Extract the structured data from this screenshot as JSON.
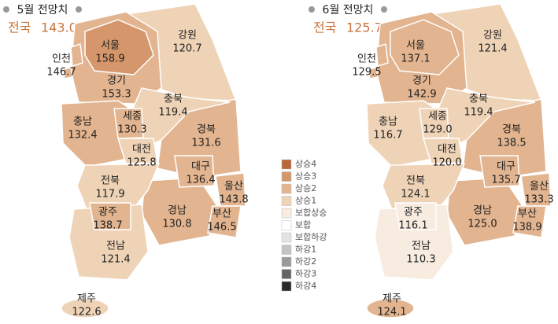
{
  "legend": [
    {
      "label": "상승4",
      "color": "#b8683a"
    },
    {
      "label": "상승3",
      "color": "#d4966a"
    },
    {
      "label": "상승2",
      "color": "#e2b48f"
    },
    {
      "label": "상승1",
      "color": "#efd3b7"
    },
    {
      "label": "보합상승",
      "color": "#f8ece0"
    },
    {
      "label": "보합",
      "color": "#ffffff"
    },
    {
      "label": "보합하강",
      "color": "#e3e3e3"
    },
    {
      "label": "하강1",
      "color": "#c4c4c4"
    },
    {
      "label": "하강2",
      "color": "#9a9a9a"
    },
    {
      "label": "하강3",
      "color": "#666666"
    },
    {
      "label": "하강4",
      "color": "#2b2b2b"
    }
  ],
  "maps": [
    {
      "title": "5월 전망치",
      "total_label": "전국",
      "total_value": "143.0",
      "regions": [
        {
          "name": "서울",
          "value": "158.9",
          "level": 1
        },
        {
          "name": "인천",
          "value": "146.7",
          "level": 2
        },
        {
          "name": "경기",
          "value": "153.3",
          "level": 2
        },
        {
          "name": "강원",
          "value": "120.7",
          "level": 3
        },
        {
          "name": "충북",
          "value": "119.4",
          "level": 3
        },
        {
          "name": "충남",
          "value": "132.4",
          "level": 2
        },
        {
          "name": "세종",
          "value": "130.3",
          "level": 2
        },
        {
          "name": "대전",
          "value": "125.8",
          "level": 3
        },
        {
          "name": "경북",
          "value": "131.6",
          "level": 2
        },
        {
          "name": "대구",
          "value": "136.4",
          "level": 2
        },
        {
          "name": "울산",
          "value": "143.8",
          "level": 2
        },
        {
          "name": "부산",
          "value": "146.5",
          "level": 2
        },
        {
          "name": "경남",
          "value": "130.8",
          "level": 2
        },
        {
          "name": "전북",
          "value": "117.9",
          "level": 3
        },
        {
          "name": "광주",
          "value": "138.7",
          "level": 2
        },
        {
          "name": "전남",
          "value": "121.4",
          "level": 3
        },
        {
          "name": "제주",
          "value": "122.6",
          "level": 3
        }
      ]
    },
    {
      "title": "6월 전망치",
      "total_label": "전국",
      "total_value": "125.7",
      "regions": [
        {
          "name": "서울",
          "value": "137.1",
          "level": 2
        },
        {
          "name": "인천",
          "value": "129.5",
          "level": 2
        },
        {
          "name": "경기",
          "value": "142.9",
          "level": 2
        },
        {
          "name": "강원",
          "value": "121.4",
          "level": 3
        },
        {
          "name": "충북",
          "value": "119.4",
          "level": 3
        },
        {
          "name": "충남",
          "value": "116.7",
          "level": 3
        },
        {
          "name": "세종",
          "value": "129.0",
          "level": 3
        },
        {
          "name": "대전",
          "value": "120.0",
          "level": 3
        },
        {
          "name": "경북",
          "value": "138.5",
          "level": 2
        },
        {
          "name": "대구",
          "value": "135.7",
          "level": 2
        },
        {
          "name": "울산",
          "value": "133.3",
          "level": 2
        },
        {
          "name": "부산",
          "value": "138.9",
          "level": 2
        },
        {
          "name": "경남",
          "value": "125.0",
          "level": 2
        },
        {
          "name": "전북",
          "value": "124.1",
          "level": 3
        },
        {
          "name": "광주",
          "value": "116.1",
          "level": 4
        },
        {
          "name": "전남",
          "value": "110.3",
          "level": 4
        },
        {
          "name": "제주",
          "value": "124.1",
          "level": 2
        }
      ]
    }
  ]
}
